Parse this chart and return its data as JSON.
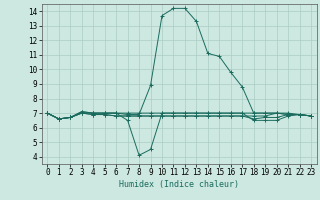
{
  "title": "",
  "xlabel": "Humidex (Indice chaleur)",
  "ylabel": "",
  "xlim": [
    -0.5,
    23.5
  ],
  "ylim": [
    3.5,
    14.5
  ],
  "xticks": [
    0,
    1,
    2,
    3,
    4,
    5,
    6,
    7,
    8,
    9,
    10,
    11,
    12,
    13,
    14,
    15,
    16,
    17,
    18,
    19,
    20,
    21,
    22,
    23
  ],
  "yticks": [
    4,
    5,
    6,
    7,
    8,
    9,
    10,
    11,
    12,
    13,
    14
  ],
  "bg_color": "#cce8e0",
  "grid_color": "#aaccc4",
  "line_color": "#1a6b5e",
  "lines": [
    {
      "x": [
        0,
        1,
        2,
        3,
        4,
        5,
        6,
        7,
        8,
        9,
        10,
        11,
        12,
        13,
        14,
        15,
        16,
        17,
        18,
        19,
        20,
        21,
        22,
        23
      ],
      "y": [
        7.0,
        6.6,
        6.7,
        7.1,
        7.0,
        7.0,
        7.0,
        6.9,
        6.9,
        8.9,
        13.7,
        14.2,
        14.2,
        13.3,
        11.1,
        10.9,
        9.8,
        8.8,
        7.0,
        7.0,
        7.0,
        7.0,
        6.9,
        6.8
      ]
    },
    {
      "x": [
        0,
        1,
        2,
        3,
        4,
        5,
        6,
        7,
        8,
        9,
        10,
        11,
        12,
        13,
        14,
        15,
        16,
        17,
        18,
        19,
        20,
        21,
        22,
        23
      ],
      "y": [
        7.0,
        6.6,
        6.7,
        7.1,
        7.0,
        7.0,
        7.0,
        6.5,
        4.1,
        4.5,
        7.0,
        7.0,
        7.0,
        7.0,
        7.0,
        7.0,
        7.0,
        7.0,
        6.5,
        6.5,
        6.5,
        6.8,
        6.9,
        6.8
      ]
    },
    {
      "x": [
        0,
        1,
        2,
        3,
        4,
        5,
        6,
        7,
        8,
        9,
        10,
        11,
        12,
        13,
        14,
        15,
        16,
        17,
        18,
        19,
        20,
        21,
        22,
        23
      ],
      "y": [
        7.0,
        6.6,
        6.7,
        7.0,
        7.0,
        7.0,
        7.0,
        7.0,
        7.0,
        7.0,
        7.0,
        7.0,
        7.0,
        7.0,
        7.0,
        7.0,
        7.0,
        7.0,
        7.0,
        7.0,
        7.0,
        6.9,
        6.9,
        6.8
      ]
    },
    {
      "x": [
        0,
        1,
        2,
        3,
        4,
        5,
        6,
        7,
        8,
        9,
        10,
        11,
        12,
        13,
        14,
        15,
        16,
        17,
        18,
        19,
        20,
        21,
        22,
        23
      ],
      "y": [
        7.0,
        6.6,
        6.7,
        7.0,
        6.9,
        6.9,
        6.8,
        6.8,
        6.8,
        6.8,
        6.8,
        6.8,
        6.8,
        6.8,
        6.8,
        6.8,
        6.8,
        6.8,
        6.6,
        6.7,
        6.7,
        6.9,
        6.9,
        6.8
      ]
    },
    {
      "x": [
        0,
        1,
        2,
        3,
        4,
        5,
        6,
        7,
        8,
        9,
        10,
        11,
        12,
        13,
        14,
        15,
        16,
        17,
        18,
        19,
        20,
        21,
        22,
        23
      ],
      "y": [
        7.0,
        6.6,
        6.7,
        7.0,
        6.9,
        6.9,
        6.8,
        6.8,
        6.8,
        6.8,
        6.8,
        6.8,
        6.8,
        6.8,
        6.8,
        6.8,
        6.8,
        6.8,
        6.8,
        6.8,
        7.0,
        6.9,
        6.9,
        6.8
      ]
    }
  ]
}
